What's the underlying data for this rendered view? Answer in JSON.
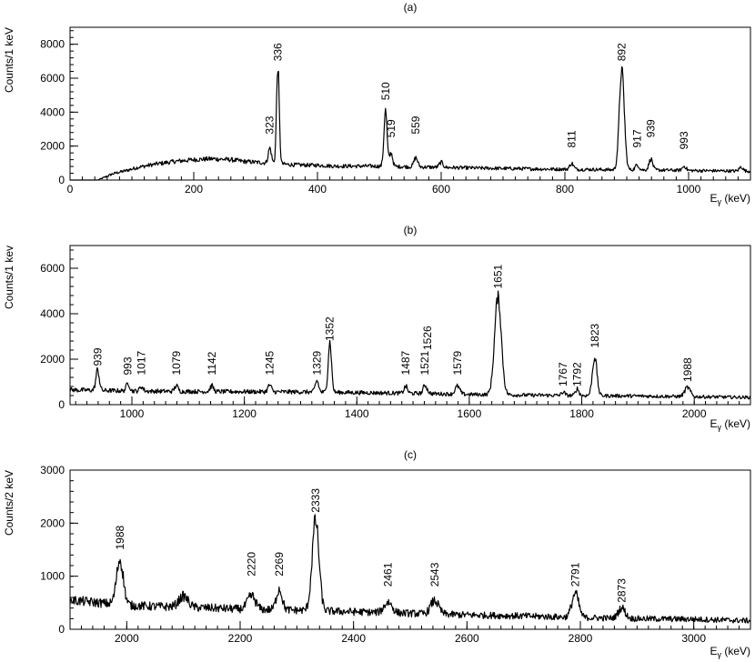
{
  "chart_data": [
    {
      "type": "line",
      "title": "(a)",
      "xlabel": "E",
      "xlabel_sub": "γ",
      "xlabel_unit": " (keV)",
      "ylabel": "Counts/1 keV",
      "xlim": [
        0,
        1100
      ],
      "ylim": [
        0,
        9000
      ],
      "xticks": [
        0,
        200,
        400,
        600,
        800,
        1000
      ],
      "xticks_minor": 20,
      "yticks": [
        0,
        2000,
        4000,
        6000,
        8000
      ],
      "yticks_minor": 400,
      "baseline": [
        [
          0,
          0
        ],
        [
          45,
          0
        ],
        [
          55,
          150
        ],
        [
          70,
          380
        ],
        [
          90,
          550
        ],
        [
          110,
          750
        ],
        [
          140,
          950
        ],
        [
          170,
          1100
        ],
        [
          200,
          1200
        ],
        [
          230,
          1250
        ],
        [
          260,
          1200
        ],
        [
          280,
          1100
        ],
        [
          300,
          1050
        ],
        [
          320,
          1000
        ],
        [
          340,
          950
        ],
        [
          360,
          900
        ],
        [
          380,
          880
        ],
        [
          400,
          870
        ],
        [
          430,
          820
        ],
        [
          460,
          820
        ],
        [
          490,
          820
        ],
        [
          520,
          800
        ],
        [
          550,
          780
        ],
        [
          580,
          760
        ],
        [
          610,
          740
        ],
        [
          640,
          720
        ],
        [
          670,
          700
        ],
        [
          700,
          680
        ],
        [
          730,
          670
        ],
        [
          760,
          650
        ],
        [
          790,
          640
        ],
        [
          820,
          630
        ],
        [
          850,
          620
        ],
        [
          880,
          600
        ],
        [
          910,
          600
        ],
        [
          940,
          590
        ],
        [
          970,
          580
        ],
        [
          1000,
          560
        ],
        [
          1030,
          550
        ],
        [
          1060,
          540
        ],
        [
          1100,
          520
        ]
      ],
      "peaks": [
        {
          "x": 323,
          "height": 900,
          "width": 2.5,
          "label": "323",
          "ly": 2700
        },
        {
          "x": 336,
          "height": 5700,
          "width": 2.2,
          "label": "336",
          "ly": 7000
        },
        {
          "x": 510,
          "height": 3300,
          "width": 2.5,
          "label": "510",
          "ly": 4700
        },
        {
          "x": 519,
          "height": 800,
          "width": 2.5,
          "label": "519",
          "ly": 2500
        },
        {
          "x": 559,
          "height": 550,
          "width": 3,
          "label": "559",
          "ly": 2700
        },
        {
          "x": 600,
          "height": 300,
          "width": 3,
          "label": ""
        },
        {
          "x": 811,
          "height": 350,
          "width": 3,
          "label": "811",
          "ly": 1900
        },
        {
          "x": 892,
          "height": 5900,
          "width": 4,
          "label": "892",
          "ly": 7000
        },
        {
          "x": 917,
          "height": 300,
          "width": 3,
          "label": "917",
          "ly": 1900
        },
        {
          "x": 939,
          "height": 650,
          "width": 3,
          "label": "939",
          "ly": 2500
        },
        {
          "x": 993,
          "height": 250,
          "width": 3,
          "label": "993",
          "ly": 1800
        },
        {
          "x": 1085,
          "height": 250,
          "width": 3,
          "label": ""
        }
      ]
    },
    {
      "type": "line",
      "title": "(b)",
      "xlabel": "E",
      "xlabel_sub": "γ",
      "xlabel_unit": " (keV)",
      "ylabel": "Counts/1 kev",
      "xlim": [
        890,
        2100
      ],
      "ylim": [
        0,
        7000
      ],
      "xticks": [
        1000,
        1200,
        1400,
        1600,
        1800,
        2000
      ],
      "xticks_minor": 20,
      "yticks": [
        0,
        2000,
        4000,
        6000
      ],
      "yticks_minor": 400,
      "baseline": [
        [
          890,
          650
        ],
        [
          1000,
          600
        ],
        [
          1100,
          580
        ],
        [
          1200,
          570
        ],
        [
          1300,
          560
        ],
        [
          1400,
          530
        ],
        [
          1500,
          500
        ],
        [
          1600,
          450
        ],
        [
          1700,
          420
        ],
        [
          1800,
          400
        ],
        [
          1900,
          380
        ],
        [
          2000,
          350
        ],
        [
          2100,
          320
        ]
      ],
      "peaks": [
        {
          "x": 939,
          "height": 900,
          "width": 3,
          "label": "939",
          "ly": 1700
        },
        {
          "x": 993,
          "height": 350,
          "width": 3,
          "label": "993",
          "ly": 1300
        },
        {
          "x": 1017,
          "height": 200,
          "width": 3,
          "label": "1017",
          "ly": 1300
        },
        {
          "x": 1079,
          "height": 250,
          "width": 3,
          "label": "1079",
          "ly": 1300
        },
        {
          "x": 1142,
          "height": 250,
          "width": 3,
          "label": "1142",
          "ly": 1300
        },
        {
          "x": 1245,
          "height": 300,
          "width": 3,
          "label": "1245",
          "ly": 1300
        },
        {
          "x": 1329,
          "height": 500,
          "width": 3,
          "label": "1329",
          "ly": 1300
        },
        {
          "x": 1352,
          "height": 2200,
          "width": 3,
          "label": "1352",
          "ly": 2800
        },
        {
          "x": 1487,
          "height": 300,
          "width": 3,
          "label": "1487",
          "ly": 1300
        },
        {
          "x": 1521,
          "height": 350,
          "width": 3,
          "label": "1521",
          "ly": 1300
        },
        {
          "x": 1526,
          "height": 80,
          "width": 3,
          "label": "1526",
          "ly": 2400
        },
        {
          "x": 1579,
          "height": 350,
          "width": 4,
          "label": "1579",
          "ly": 1300
        },
        {
          "x": 1651,
          "height": 4300,
          "width": 6,
          "label": "1651",
          "ly": 5100
        },
        {
          "x": 1767,
          "height": 150,
          "width": 3,
          "label": "1767",
          "ly": 800
        },
        {
          "x": 1792,
          "height": 300,
          "width": 3,
          "label": "1792",
          "ly": 800
        },
        {
          "x": 1823,
          "height": 1700,
          "width": 4,
          "label": "1823",
          "ly": 2500
        },
        {
          "x": 1988,
          "height": 400,
          "width": 5,
          "label": "1988",
          "ly": 1000
        }
      ]
    },
    {
      "type": "line",
      "title": "(c)",
      "xlabel": "E",
      "xlabel_sub": "γ",
      "xlabel_unit": " (keV)",
      "ylabel": "Counts/2 keV",
      "xlim": [
        1900,
        3100
      ],
      "ylim": [
        0,
        3000
      ],
      "xticks": [
        2000,
        2200,
        2400,
        2600,
        2800,
        3000
      ],
      "xticks_minor": 20,
      "yticks": [
        0,
        1000,
        2000,
        3000
      ],
      "yticks_minor": 200,
      "baseline": [
        [
          1900,
          550
        ],
        [
          1950,
          500
        ],
        [
          2000,
          450
        ],
        [
          2050,
          430
        ],
        [
          2100,
          420
        ],
        [
          2150,
          400
        ],
        [
          2200,
          380
        ],
        [
          2300,
          360
        ],
        [
          2400,
          330
        ],
        [
          2500,
          300
        ],
        [
          2600,
          270
        ],
        [
          2700,
          250
        ],
        [
          2800,
          220
        ],
        [
          2900,
          200
        ],
        [
          3000,
          190
        ],
        [
          3100,
          160
        ]
      ],
      "peaks": [
        {
          "x": 1988,
          "height": 850,
          "width": 6,
          "label": "1988",
          "ly": 1500
        },
        {
          "x": 2100,
          "height": 200,
          "width": 8,
          "label": ""
        },
        {
          "x": 2220,
          "height": 250,
          "width": 7,
          "label": "2220",
          "ly": 1000
        },
        {
          "x": 2269,
          "height": 400,
          "width": 5,
          "label": "2269",
          "ly": 1000
        },
        {
          "x": 2333,
          "height": 1700,
          "width": 6,
          "label": "2333",
          "ly": 2200
        },
        {
          "x": 2461,
          "height": 200,
          "width": 7,
          "label": "2461",
          "ly": 800
        },
        {
          "x": 2543,
          "height": 250,
          "width": 7,
          "label": "2543",
          "ly": 800
        },
        {
          "x": 2791,
          "height": 450,
          "width": 6,
          "label": "2791",
          "ly": 800
        },
        {
          "x": 2873,
          "height": 200,
          "width": 6,
          "label": "2873",
          "ly": 500
        }
      ]
    }
  ]
}
